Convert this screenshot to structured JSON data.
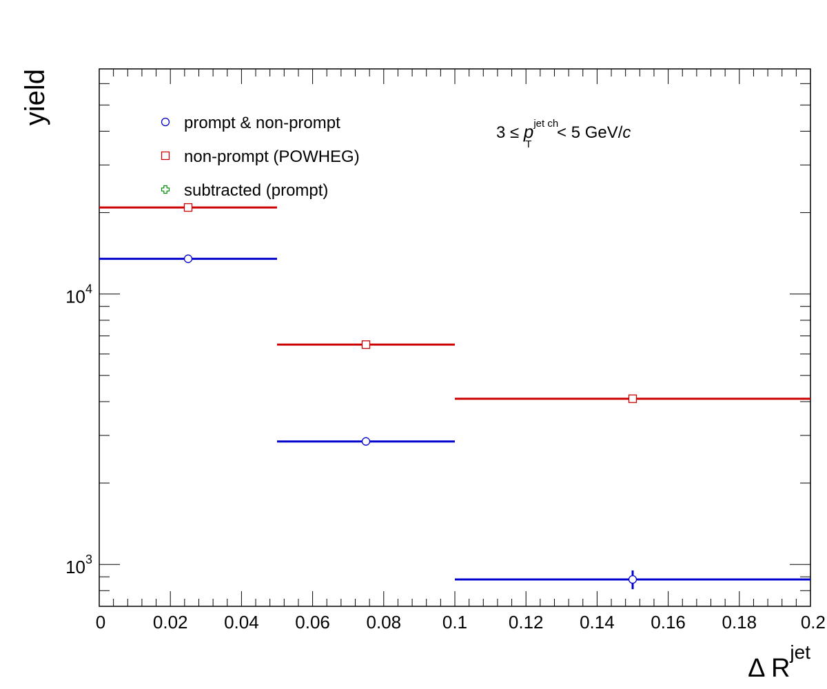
{
  "chart_data": {
    "type": "scatter",
    "xlabel": {
      "main": "Δ R",
      "sup": "jet"
    },
    "ylabel": "yield",
    "xlim": [
      0,
      0.2
    ],
    "ylim": [
      700,
      68000
    ],
    "log_y": true,
    "x_tick_labels": [
      "0",
      "0.02",
      "0.04",
      "0.06",
      "0.08",
      "0.1",
      "0.12",
      "0.14",
      "0.16",
      "0.18",
      "0.2"
    ],
    "y_tick_labels": [
      {
        "base": "10",
        "exp": "3",
        "value": 1000
      },
      {
        "base": "10",
        "exp": "4",
        "value": 10000
      }
    ],
    "grid": false,
    "legend_position": "top-left",
    "annotation": {
      "prefix": "3 ≤ ",
      "var": "p",
      "sub": "T",
      "sup": "jet ch",
      "suffix": " < 5 GeV/",
      "unit_italic": "c"
    },
    "series": [
      {
        "name": "prompt & non-prompt",
        "marker": "open-circle",
        "color": "#0000cc",
        "points": [
          {
            "x": 0.025,
            "xlow": 0.0,
            "xhigh": 0.05,
            "y": 13500,
            "yerr": 0
          },
          {
            "x": 0.075,
            "xlow": 0.05,
            "xhigh": 0.1,
            "y": 2850,
            "yerr": 0
          },
          {
            "x": 0.15,
            "xlow": 0.1,
            "xhigh": 0.2,
            "y": 880,
            "yerr": 70
          }
        ]
      },
      {
        "name": "non-prompt (POWHEG)",
        "marker": "open-square",
        "color": "#cc0000",
        "points": [
          {
            "x": 0.025,
            "xlow": 0.0,
            "xhigh": 0.05,
            "y": 20900,
            "yerr": 0
          },
          {
            "x": 0.075,
            "xlow": 0.05,
            "xhigh": 0.1,
            "y": 6500,
            "yerr": 0
          },
          {
            "x": 0.15,
            "xlow": 0.1,
            "xhigh": 0.2,
            "y": 4100,
            "yerr": 0
          }
        ]
      },
      {
        "name": "subtracted (prompt)",
        "marker": "open-cross",
        "color": "#008800",
        "points": []
      }
    ]
  }
}
